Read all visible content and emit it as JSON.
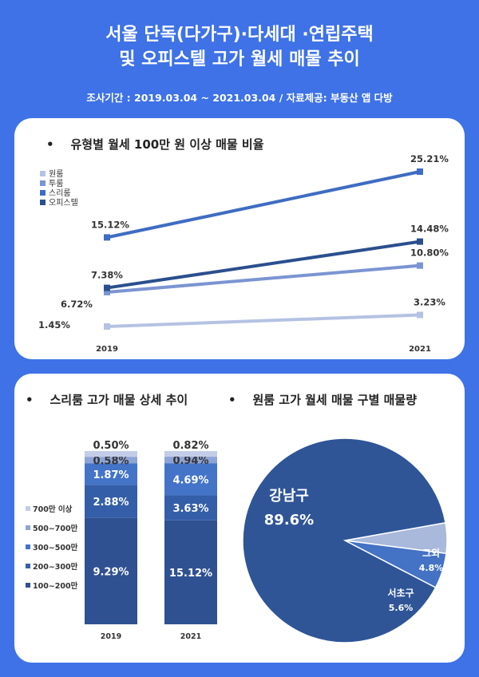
{
  "header": {
    "title_line1": "서울 단독(다가구)·다세대 ·연립주택",
    "title_line2": "및 오피스텔 고가 월세 매물 추이",
    "subtitle": "조사기간 : 2019.03.04 ~ 2021.03.04 / 자료제공: 부동산 앱 다방"
  },
  "chart_data": [
    {
      "type": "line",
      "title": "유형별 월세 100만 원 이상 매물 비율",
      "categories": [
        "2019",
        "2021"
      ],
      "legend_position": "top-left",
      "series": [
        {
          "name": "원룸",
          "values": [
            1.45,
            3.23
          ],
          "labels": [
            "1.45%",
            "3.23%"
          ],
          "color": "#b4c2e3"
        },
        {
          "name": "투룸",
          "values": [
            6.72,
            10.8
          ],
          "labels": [
            "6.72%",
            "10.80%"
          ],
          "color": "#7b94d2"
        },
        {
          "name": "스리룸",
          "values": [
            15.12,
            25.21
          ],
          "labels": [
            "15.12%",
            "25.21%"
          ],
          "color": "#3f6cc2"
        },
        {
          "name": "오피스텔",
          "values": [
            7.38,
            14.48
          ],
          "labels": [
            "7.38%",
            "14.48%"
          ],
          "color": "#2b4f8e"
        }
      ]
    },
    {
      "type": "bar",
      "stacked": true,
      "title": "스리룸 고가 매물 상세 추이",
      "categories": [
        "2019",
        "2021"
      ],
      "legend_position": "left",
      "series": [
        {
          "name": "100~200만",
          "values": [
            9.29,
            15.12
          ],
          "labels": [
            "9.29%",
            "15.12%"
          ],
          "color": "#2f5192"
        },
        {
          "name": "200~300만",
          "values": [
            2.88,
            3.63
          ],
          "labels": [
            "2.88%",
            "3.63%"
          ],
          "color": "#355ea8"
        },
        {
          "name": "300~500만",
          "values": [
            1.87,
            4.69
          ],
          "labels": [
            "1.87%",
            "4.69%"
          ],
          "color": "#4474c8"
        },
        {
          "name": "500~700만",
          "values": [
            0.58,
            0.94
          ],
          "labels": [
            "0.58%",
            "0.94%"
          ],
          "color": "#8ea4d6"
        },
        {
          "name": "700만 이상",
          "values": [
            0.5,
            0.82
          ],
          "labels": [
            "0.50%",
            "0.82%"
          ],
          "color": "#c3cde8"
        }
      ]
    },
    {
      "type": "pie",
      "title": "원룸 고가 월세 매물 구별 매물량",
      "slices": [
        {
          "name": "강남구",
          "value": 89.6,
          "label": "89.6%",
          "color": "#2f5597"
        },
        {
          "name": "그외",
          "value": 4.8,
          "label": "4.8%",
          "color": "#a9b9dc"
        },
        {
          "name": "서초구",
          "value": 5.6,
          "label": "5.6%",
          "color": "#4472c4"
        }
      ]
    }
  ]
}
